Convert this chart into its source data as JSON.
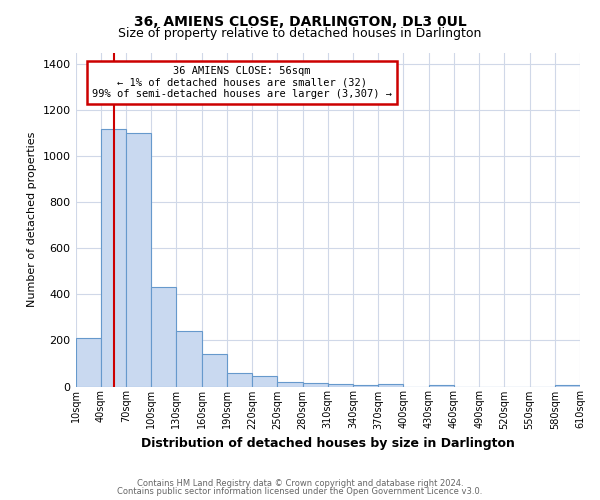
{
  "title": "36, AMIENS CLOSE, DARLINGTON, DL3 0UL",
  "subtitle": "Size of property relative to detached houses in Darlington",
  "xlabel": "Distribution of detached houses by size in Darlington",
  "ylabel": "Number of detached properties",
  "bin_edges": [
    10,
    40,
    70,
    100,
    130,
    160,
    190,
    220,
    250,
    280,
    310,
    340,
    370,
    400,
    430,
    460,
    490,
    520,
    550,
    580,
    610
  ],
  "bar_heights": [
    210,
    1120,
    1100,
    430,
    240,
    140,
    60,
    45,
    20,
    15,
    10,
    8,
    10,
    0,
    8,
    0,
    0,
    0,
    0,
    5
  ],
  "bar_color": "#c9d9f0",
  "bar_edge_color": "#6699cc",
  "grid_color": "#d0d8e8",
  "background_color": "#ffffff",
  "vline_x": 56,
  "vline_color": "#cc0000",
  "annotation_box_text": "36 AMIENS CLOSE: 56sqm\n← 1% of detached houses are smaller (32)\n99% of semi-detached houses are larger (3,307) →",
  "annotation_box_edge_color": "#cc0000",
  "annotation_box_facecolor": "#ffffff",
  "ylim": [
    0,
    1450
  ],
  "yticks": [
    0,
    200,
    400,
    600,
    800,
    1000,
    1200,
    1400
  ],
  "tick_labels": [
    "10sqm",
    "40sqm",
    "70sqm",
    "100sqm",
    "130sqm",
    "160sqm",
    "190sqm",
    "220sqm",
    "250sqm",
    "280sqm",
    "310sqm",
    "340sqm",
    "370sqm",
    "400sqm",
    "430sqm",
    "460sqm",
    "490sqm",
    "520sqm",
    "550sqm",
    "580sqm",
    "610sqm"
  ],
  "footer_line1": "Contains HM Land Registry data © Crown copyright and database right 2024.",
  "footer_line2": "Contains public sector information licensed under the Open Government Licence v3.0."
}
